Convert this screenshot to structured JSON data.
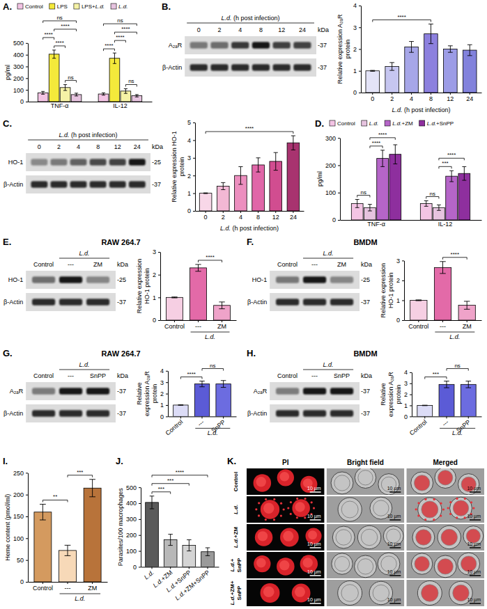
{
  "chart_data": [
    {
      "type": "bar",
      "panel_label": "A.",
      "categories": [
        "TNF-α",
        "IL-12"
      ],
      "series": [
        {
          "name": "Control",
          "color": "#f3c4e4",
          "values": [
            75,
            65
          ],
          "errors": [
            12,
            10
          ]
        },
        {
          "name": "LPS",
          "color": "#f4e93b",
          "values": [
            405,
            370
          ],
          "errors": [
            35,
            45
          ]
        },
        {
          "name": "LPS+L.d.",
          "color": "#f5f2a6",
          "values": [
            120,
            90
          ],
          "errors": [
            25,
            20
          ]
        },
        {
          "name": "L.d.",
          "color": "#e6c3df",
          "values": [
            60,
            50
          ],
          "errors": [
            12,
            10
          ]
        }
      ],
      "y_label": "pg/ml",
      "ylim": [
        0,
        500
      ],
      "yticks": [
        0,
        100,
        200,
        300,
        400,
        500
      ],
      "legend": "top",
      "annotations": [
        {
          "category": "TNF-α",
          "between": [
            "Control",
            "LPS"
          ],
          "text": "****"
        },
        {
          "category": "TNF-α",
          "between": [
            "LPS",
            "LPS+L.d."
          ],
          "text": "****"
        },
        {
          "category": "TNF-α",
          "between": [
            "LPS",
            "L.d."
          ],
          "text": "****"
        },
        {
          "category": "TNF-α",
          "between": [
            "LPS+L.d.",
            "L.d."
          ],
          "text": "ns"
        },
        {
          "category": "TNF-α",
          "between": [
            "Control",
            "L.d."
          ],
          "text": "ns"
        },
        {
          "category": "IL-12",
          "between": [
            "Control",
            "LPS"
          ],
          "text": "****"
        },
        {
          "category": "IL-12",
          "between": [
            "LPS",
            "LPS+L.d."
          ],
          "text": "****"
        },
        {
          "category": "IL-12",
          "between": [
            "LPS",
            "L.d."
          ],
          "text": "****"
        },
        {
          "category": "IL-12",
          "between": [
            "LPS+L.d.",
            "L.d."
          ],
          "text": "ns"
        },
        {
          "category": "IL-12",
          "between": [
            "Control",
            "L.d."
          ],
          "text": "ns"
        }
      ]
    },
    {
      "type": "bar",
      "panel_label": "B.",
      "categories": [
        0,
        2,
        4,
        8,
        12,
        24
      ],
      "values": [
        1,
        1.2,
        2.1,
        2.7,
        2.0,
        1.95
      ],
      "errors": [
        0.02,
        0.18,
        0.25,
        0.45,
        0.15,
        0.25
      ],
      "colors": [
        "#e3e3f7",
        "#c6c6f0",
        "#a6a6e8",
        "#8c80de",
        "#9c9ce6",
        "#8282dc"
      ],
      "x_label": "L.d. (h post infection)",
      "y_label": "Relative expression A₂ₐR protein",
      "ylim": [
        0,
        4
      ],
      "yticks": [
        0,
        1,
        2,
        3,
        4
      ],
      "annotations": [
        {
          "between": [
            0,
            8
          ],
          "text": "****"
        }
      ],
      "blot": {
        "header": "L.d. (h post infection)",
        "lanes": [
          0,
          2,
          4,
          8,
          12,
          24
        ],
        "unit": "kDa",
        "rows": [
          {
            "label": "A₂ₐR",
            "size_label": "-37"
          },
          {
            "label": "β-Actin",
            "size_label": "-37"
          }
        ]
      }
    },
    {
      "type": "bar",
      "panel_label": "C.",
      "categories": [
        0,
        2,
        4,
        8,
        12,
        24
      ],
      "values": [
        1,
        1.4,
        2.0,
        2.6,
        2.8,
        3.85
      ],
      "errors": [
        0.02,
        0.2,
        0.5,
        0.4,
        0.5,
        0.4
      ],
      "colors": [
        "#f8d7e8",
        "#f2b8d4",
        "#ec8fbf",
        "#e066a8",
        "#d14d90",
        "#a8336f"
      ],
      "x_label": "L.d. (h post infection)",
      "y_label": "Relative expression HO-1 protein",
      "ylim": [
        0,
        5
      ],
      "yticks": [
        0,
        1,
        2,
        3,
        4,
        5
      ],
      "annotations": [
        {
          "between": [
            0,
            24
          ],
          "text": "****"
        }
      ],
      "blot": {
        "header": "L.d. (h post infection)",
        "lanes": [
          0,
          2,
          4,
          8,
          12,
          24
        ],
        "unit": "kDa",
        "rows": [
          {
            "label": "HO-1",
            "size_label": "-25"
          },
          {
            "label": "β-Actin",
            "size_label": "-37"
          }
        ]
      }
    },
    {
      "type": "bar",
      "panel_label": "D.",
      "categories": [
        "TNF-α",
        "IL-12"
      ],
      "series": [
        {
          "name": "Control",
          "color": "#f3c4e4",
          "values": [
            60,
            60
          ],
          "errors": [
            15,
            10
          ]
        },
        {
          "name": "L.d.",
          "color": "#e6c3df",
          "values": [
            45,
            45
          ],
          "errors": [
            12,
            10
          ]
        },
        {
          "name": "L.d.+ZM",
          "color": "#b565c8",
          "values": [
            225,
            160
          ],
          "errors": [
            30,
            20
          ]
        },
        {
          "name": "L.d.+SnPP",
          "color": "#8e2f9e",
          "values": [
            240,
            170
          ],
          "errors": [
            35,
            25
          ]
        }
      ],
      "y_label": "pg/ml",
      "ylim": [
        0,
        300
      ],
      "yticks": [
        0,
        100,
        200,
        300
      ],
      "legend": "top",
      "annotations": [
        {
          "category": "TNF-α",
          "between": [
            "Control",
            "L.d."
          ],
          "text": "ns"
        },
        {
          "category": "TNF-α",
          "between": [
            "L.d.",
            "L.d.+ZM"
          ],
          "text": "****"
        },
        {
          "category": "TNF-α",
          "between": [
            "L.d.",
            "L.d.+SnPP"
          ],
          "text": "****"
        },
        {
          "category": "IL-12",
          "between": [
            "Control",
            "L.d."
          ],
          "text": "ns"
        },
        {
          "category": "IL-12",
          "between": [
            "L.d.",
            "L.d.+ZM"
          ],
          "text": "***"
        },
        {
          "category": "IL-12",
          "between": [
            "L.d.",
            "L.d.+SnPP"
          ],
          "text": "****"
        }
      ]
    },
    {
      "type": "bar",
      "panel_label": "E.",
      "title": "RAW 264.7",
      "categories": [
        "Control",
        "---",
        "ZM"
      ],
      "x_group": {
        "label": "L.d.",
        "span": [
          "---",
          "ZM"
        ]
      },
      "values": [
        1,
        2.3,
        0.65
      ],
      "errors": [
        0.02,
        0.15,
        0.15
      ],
      "colors": [
        "#f6cfe3",
        "#e36aa8",
        "#efa3c9"
      ],
      "y_label": "Relative expression HO-1 protein",
      "ylim": [
        0,
        3
      ],
      "yticks": [
        0,
        1,
        2,
        3
      ],
      "annotations": [
        {
          "between": [
            "---",
            "ZM"
          ],
          "text": "****"
        }
      ],
      "blot": {
        "lanes": [
          "Control",
          "---",
          "ZM"
        ],
        "lane_group": {
          "label": "L.d.",
          "span": [
            "---",
            "ZM"
          ]
        },
        "unit": "kDa",
        "rows": [
          {
            "label": "HO-1",
            "size_label": "-25"
          },
          {
            "label": "β-Actin",
            "size_label": "-37"
          }
        ]
      }
    },
    {
      "type": "bar",
      "panel_label": "F.",
      "title": "BMDM",
      "categories": [
        "Control",
        "---",
        "ZM"
      ],
      "x_group": {
        "label": "L.d.",
        "span": [
          "---",
          "ZM"
        ]
      },
      "values": [
        1,
        2.65,
        0.75
      ],
      "errors": [
        0.02,
        0.3,
        0.2
      ],
      "colors": [
        "#f6cfe3",
        "#e36aa8",
        "#efa3c9"
      ],
      "y_label": "Relative expression HO-1 protein",
      "ylim": [
        0,
        3
      ],
      "yticks": [
        0,
        1,
        2,
        3
      ],
      "annotations": [
        {
          "between": [
            "---",
            "ZM"
          ],
          "text": "****"
        }
      ],
      "blot": {
        "lanes": [
          "Control",
          "---",
          "ZM"
        ],
        "lane_group": {
          "label": "L.d.",
          "span": [
            "---",
            "ZM"
          ]
        },
        "unit": "kDa",
        "rows": [
          {
            "label": "HO-1",
            "size_label": "-25"
          },
          {
            "label": "β-Actin",
            "size_label": "-37"
          }
        ]
      }
    },
    {
      "type": "bar",
      "panel_label": "G.",
      "title": "RAW 264.7",
      "categories": [
        "Control",
        "---",
        "SnPP"
      ],
      "x_group": {
        "label": "L.d.",
        "span": [
          "---",
          "SnPP"
        ]
      },
      "values": [
        1,
        2.85,
        2.85
      ],
      "errors": [
        0.02,
        0.25,
        0.3
      ],
      "colors": [
        "#dcdcf6",
        "#5b5bd6",
        "#6c6ce0"
      ],
      "y_label": "Relative expression A₂ₐR protein",
      "ylim": [
        0,
        4
      ],
      "yticks": [
        0,
        1,
        2,
        3,
        4
      ],
      "annotations": [
        {
          "between": [
            "Control",
            "---"
          ],
          "text": "****"
        },
        {
          "between": [
            "---",
            "SnPP"
          ],
          "text": "ns"
        }
      ],
      "blot": {
        "lanes": [
          "Control",
          "---",
          "SnPP"
        ],
        "lane_group": {
          "label": "L.d.",
          "span": [
            "---",
            "SnPP"
          ]
        },
        "unit": "kDa",
        "rows": [
          {
            "label": "A₂ₐR",
            "size_label": "-37"
          },
          {
            "label": "β-Actin",
            "size_label": "-37"
          }
        ]
      }
    },
    {
      "type": "bar",
      "panel_label": "H.",
      "title": "BMDM",
      "categories": [
        "Control",
        "---",
        "SnPP"
      ],
      "x_group": {
        "label": "L.d.",
        "span": [
          "---",
          "SnPP"
        ]
      },
      "values": [
        1,
        2.9,
        2.9
      ],
      "errors": [
        0.02,
        0.3,
        0.3
      ],
      "colors": [
        "#dcdcf6",
        "#5b5bd6",
        "#6c6ce0"
      ],
      "y_label": "Relative expression A₂ₐR protein",
      "ylim": [
        0,
        4
      ],
      "yticks": [
        0,
        1,
        2,
        3,
        4
      ],
      "annotations": [
        {
          "between": [
            "Control",
            "---"
          ],
          "text": "***"
        },
        {
          "between": [
            "---",
            "SnPP"
          ],
          "text": "ns"
        }
      ],
      "blot": {
        "lanes": [
          "Control",
          "---",
          "SnPP"
        ],
        "lane_group": {
          "label": "L.d.",
          "span": [
            "---",
            "SnPP"
          ]
        },
        "unit": "kDa",
        "rows": [
          {
            "label": "A₂ₐR",
            "size_label": "-37"
          },
          {
            "label": "β-Actin",
            "size_label": "-37"
          }
        ]
      }
    },
    {
      "type": "bar",
      "panel_label": "I.",
      "categories": [
        "Control",
        "---",
        "ZM"
      ],
      "x_group": {
        "label": "L.d.",
        "span": [
          "---",
          "ZM"
        ]
      },
      "values": [
        160,
        72,
        215
      ],
      "errors": [
        18,
        12,
        20
      ],
      "colors": [
        "#d49a5f",
        "#f7d9b8",
        "#b8733a"
      ],
      "y_label": "Heme content (pmol/ml)",
      "ylim": [
        0,
        250
      ],
      "yticks": [
        0,
        50,
        100,
        150,
        200,
        250
      ],
      "annotations": [
        {
          "between": [
            "Control",
            "---"
          ],
          "text": "**"
        },
        {
          "between": [
            "---",
            "ZM"
          ],
          "text": "***"
        }
      ]
    },
    {
      "type": "bar",
      "panel_label": "J.",
      "categories": [
        "L.d.",
        "L.d.+ZM",
        "L.d.+SnPP",
        "L.d.+ZM+SnPP"
      ],
      "values": [
        405,
        170,
        135,
        95
      ],
      "errors": [
        40,
        35,
        35,
        25
      ],
      "colors": [
        "#5a5a5a",
        "#b8b8b8",
        "#d4d4d4",
        "#9a9a9a"
      ],
      "y_label": "Parasites/100 macrophages",
      "ylim": [
        0,
        500
      ],
      "yticks": [
        0,
        100,
        200,
        300,
        400,
        500
      ],
      "annotations": [
        {
          "between": [
            "L.d.",
            "L.d.+ZM"
          ],
          "text": "***"
        },
        {
          "between": [
            "L.d.",
            "L.d.+SnPP"
          ],
          "text": "***"
        },
        {
          "between": [
            "L.d.",
            "L.d.+ZM+SnPP"
          ],
          "text": "****"
        }
      ]
    }
  ],
  "micrographs": {
    "panel_label": "K.",
    "columns": [
      "PI",
      "Bright field",
      "Merged"
    ],
    "rows": [
      "Control",
      "L.d.",
      "L.d.+ZM",
      "L.d.+SnPP",
      "L.d.+ZM+SnPP"
    ],
    "scale_bar": "10 µm"
  }
}
